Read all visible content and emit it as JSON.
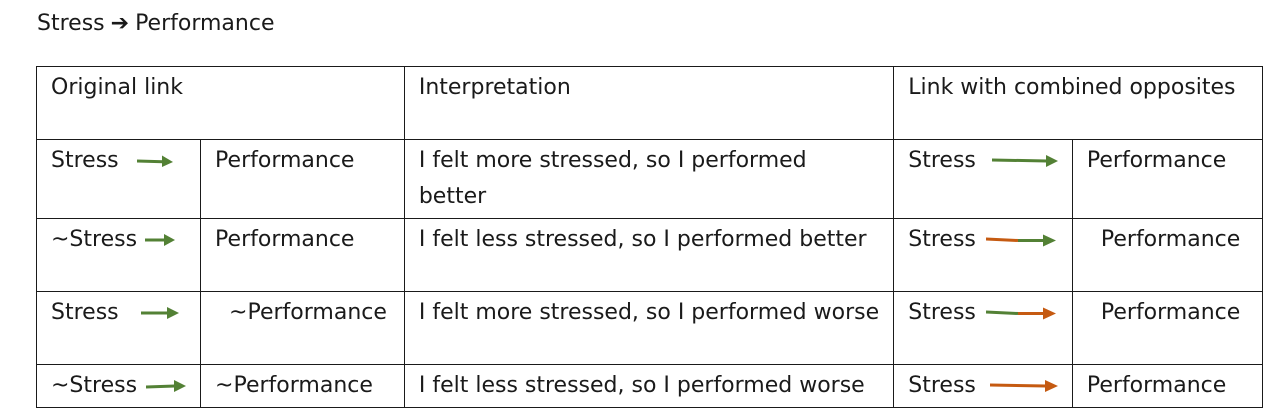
{
  "heading": {
    "left": "Stress",
    "right": "Performance"
  },
  "colors": {
    "green": "#538135",
    "orange": "#c55a11"
  },
  "table": {
    "headers": {
      "original": "Original link",
      "interpretation": "Interpretation",
      "combined": "Link with combined opposites"
    },
    "rows": [
      {
        "orig_cause": "Stress",
        "orig_effect": "Performance",
        "interpretation": "I felt more stressed, so I performed better",
        "comb_cause": "Stress",
        "comb_effect": "Performance",
        "arrow_original": "green-arrow",
        "arrow_combined": "green-arrow"
      },
      {
        "orig_cause": "~Stress",
        "orig_effect": "Performance",
        "interpretation": "I felt less stressed, so I performed better",
        "comb_cause": "Stress",
        "comb_effect": "Performance",
        "arrow_original": "green-arrow",
        "arrow_combined": "orange-green-arrow"
      },
      {
        "orig_cause": "Stress",
        "orig_effect": "~Performance",
        "interpretation": "I felt more stressed, so I performed worse",
        "comb_cause": "Stress",
        "comb_effect": "Performance",
        "arrow_original": "green-arrow",
        "arrow_combined": "green-orange-arrow"
      },
      {
        "orig_cause": "~Stress",
        "orig_effect": "~Performance",
        "interpretation": "I felt less stressed, so I performed worse",
        "comb_cause": "Stress",
        "comb_effect": "Performance",
        "arrow_original": "green-arrow",
        "arrow_combined": "orange-arrow"
      }
    ]
  }
}
